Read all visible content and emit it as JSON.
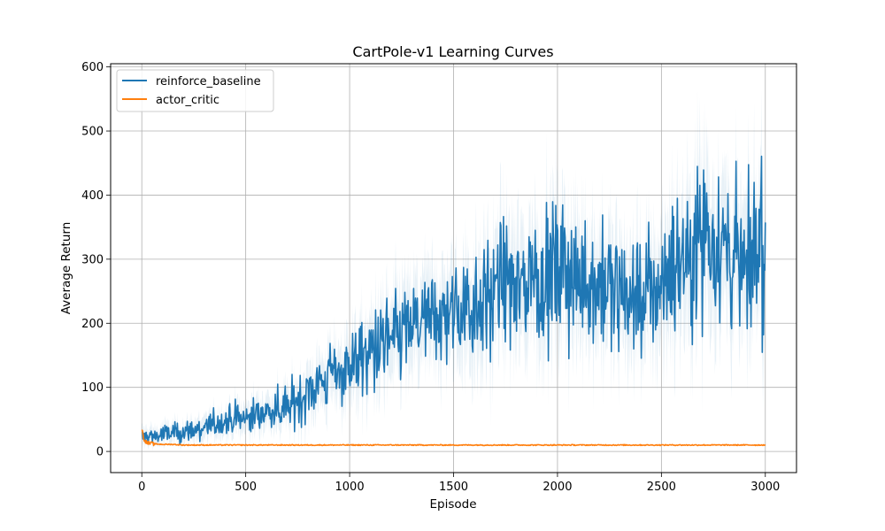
{
  "chart_data": {
    "type": "line",
    "title": "CartPole-v1 Learning Curves",
    "xlabel": "Episode",
    "ylabel": "Average Return",
    "xlim": [
      -150,
      3150
    ],
    "ylim": [
      -33,
      605
    ],
    "xticks": [
      0,
      500,
      1000,
      1500,
      2000,
      2500,
      3000
    ],
    "yticks": [
      0,
      100,
      200,
      300,
      400,
      500,
      600
    ],
    "grid": true,
    "legend_position": "upper-left",
    "series": [
      {
        "name": "reinforce_baseline",
        "color": "#1f77b4",
        "shaded_band": true,
        "x": [
          0,
          50,
          100,
          150,
          200,
          250,
          300,
          350,
          400,
          450,
          500,
          550,
          600,
          650,
          700,
          750,
          800,
          850,
          900,
          950,
          1000,
          1050,
          1100,
          1150,
          1200,
          1250,
          1300,
          1350,
          1400,
          1450,
          1500,
          1550,
          1600,
          1650,
          1700,
          1750,
          1800,
          1850,
          1900,
          1950,
          2000,
          2050,
          2100,
          2150,
          2200,
          2250,
          2300,
          2350,
          2400,
          2450,
          2500,
          2550,
          2600,
          2650,
          2700,
          2750,
          2800,
          2850,
          2900,
          2950,
          3000
        ],
        "y": [
          22,
          24,
          26,
          28,
          30,
          33,
          37,
          42,
          47,
          50,
          52,
          58,
          62,
          66,
          70,
          80,
          95,
          105,
          115,
          125,
          135,
          145,
          155,
          165,
          175,
          185,
          195,
          200,
          205,
          210,
          215,
          225,
          235,
          240,
          250,
          255,
          260,
          265,
          275,
          270,
          280,
          275,
          270,
          265,
          260,
          250,
          245,
          245,
          240,
          245,
          270,
          290,
          300,
          320,
          350,
          345,
          320,
          300,
          290,
          310,
          330
        ]
      },
      {
        "name": "actor_critic",
        "color": "#ff7f0e",
        "shaded_band": false,
        "x": [
          0,
          10,
          20,
          30,
          50,
          100,
          150,
          200,
          300,
          500,
          1000,
          1500,
          2000,
          2500,
          3000
        ],
        "y": [
          35,
          20,
          15,
          13,
          12,
          11,
          11,
          10,
          10,
          10,
          10,
          10,
          10,
          10,
          10
        ]
      }
    ]
  }
}
